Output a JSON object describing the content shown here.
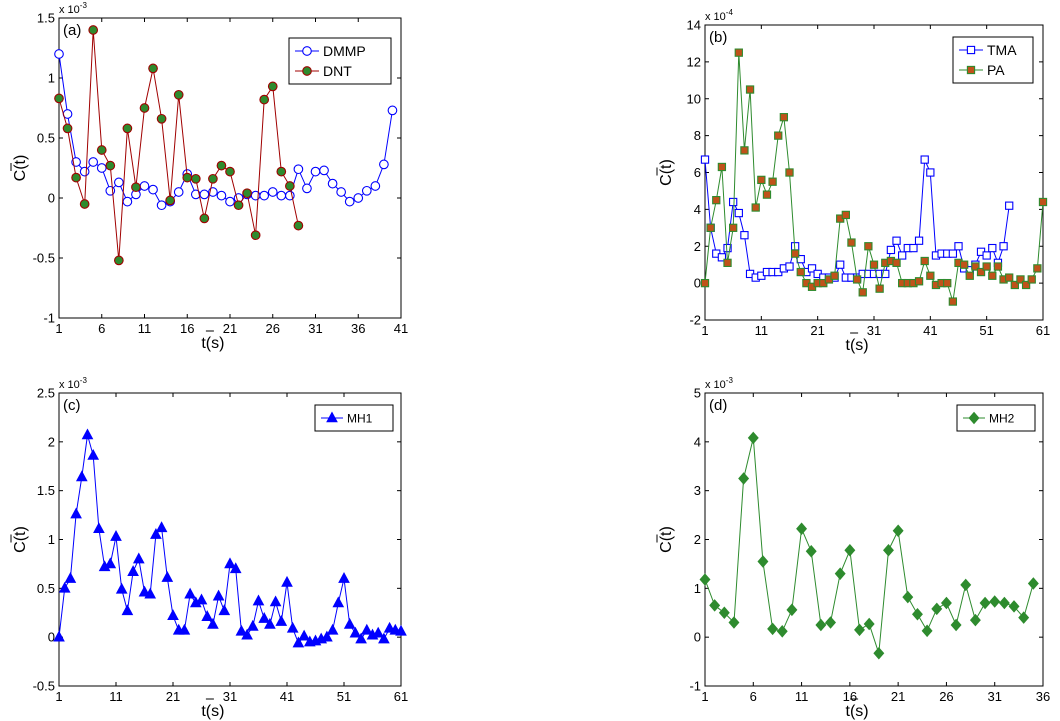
{
  "chart_data": [
    {
      "type": "line",
      "panel_label": "(a)",
      "xlabel": "t(s)",
      "ylabel": "C(t)",
      "exponent_label": "x 10",
      "exponent_power": "-3",
      "xlim": [
        1,
        41
      ],
      "ylim": [
        -1,
        1.5
      ],
      "xticks": [
        1,
        6,
        11,
        16,
        21,
        26,
        31,
        36,
        41
      ],
      "yticks": [
        -1,
        -0.5,
        0,
        0.5,
        1,
        1.5
      ],
      "series": [
        {
          "name": "DMMP",
          "color": "#0000ff",
          "fill": "#ffffff",
          "marker": "circle",
          "x": [
            1,
            2,
            3,
            4,
            5,
            6,
            7,
            8,
            9,
            10,
            11,
            12,
            13,
            14,
            15,
            16,
            17,
            18,
            19,
            20,
            21,
            22,
            23,
            24,
            25,
            26,
            27,
            28,
            29,
            30,
            31,
            32,
            33,
            34,
            35,
            36,
            37,
            38,
            39,
            40
          ],
          "y": [
            1.2,
            0.7,
            0.3,
            0.22,
            0.3,
            0.25,
            0.06,
            0.13,
            -0.03,
            0.03,
            0.1,
            0.07,
            -0.06,
            -0.03,
            0.05,
            0.2,
            0.03,
            0.03,
            0.05,
            0.02,
            -0.03,
            0.0,
            0.03,
            0.02,
            0.02,
            0.05,
            0.02,
            0.02,
            0.24,
            0.08,
            0.22,
            0.23,
            0.12,
            0.05,
            -0.03,
            0.0,
            0.06,
            0.1,
            0.28,
            0.73
          ]
        },
        {
          "name": "DNT",
          "color": "#a00000",
          "fill": "#2e8b2e",
          "marker": "circle",
          "x": [
            1,
            2,
            3,
            4,
            5,
            6,
            7,
            8,
            9,
            10,
            11,
            12,
            13,
            14,
            15,
            16,
            17,
            18,
            19,
            20,
            21,
            22,
            23,
            24,
            25,
            26,
            27,
            28,
            29
          ],
          "y": [
            0.83,
            0.58,
            0.17,
            -0.05,
            1.4,
            0.4,
            0.27,
            -0.52,
            0.58,
            0.09,
            0.75,
            1.08,
            0.66,
            -0.02,
            0.86,
            0.17,
            0.16,
            -0.17,
            0.16,
            0.27,
            0.22,
            -0.06,
            0.04,
            -0.31,
            0.82,
            0.93,
            0.22,
            0.1,
            -0.23
          ]
        }
      ]
    },
    {
      "type": "line",
      "panel_label": "(b)",
      "xlabel": "t(s)",
      "ylabel": "C(t)",
      "exponent_label": "x 10",
      "exponent_power": "-4",
      "xlim": [
        1,
        61
      ],
      "ylim": [
        -2,
        14
      ],
      "xticks": [
        1,
        11,
        21,
        31,
        41,
        51,
        61
      ],
      "yticks": [
        -2,
        0,
        2,
        4,
        6,
        8,
        10,
        12,
        14
      ],
      "series": [
        {
          "name": "TMA",
          "color": "#0000ff",
          "fill": "#ffffff",
          "marker": "square",
          "x": [
            1,
            2,
            3,
            4,
            5,
            6,
            7,
            8,
            9,
            10,
            11,
            12,
            13,
            14,
            15,
            16,
            17,
            18,
            19,
            20,
            21,
            22,
            23,
            24,
            25,
            26,
            27,
            28,
            29,
            30,
            31,
            32,
            33,
            34,
            35,
            36,
            37,
            38,
            39,
            40,
            41,
            42,
            43,
            44,
            45,
            46,
            47,
            48,
            49,
            50,
            51,
            52,
            53,
            54,
            55,
            56
          ],
          "y": [
            6.7,
            3.0,
            1.6,
            1.4,
            1.9,
            4.4,
            3.8,
            2.6,
            0.5,
            0.3,
            0.4,
            0.6,
            0.6,
            0.6,
            0.8,
            0.9,
            2.0,
            1.3,
            0.6,
            0.8,
            0.5,
            0.3,
            0.3,
            0.3,
            1.0,
            0.3,
            0.3,
            0.3,
            0.5,
            0.5,
            0.5,
            0.5,
            0.5,
            1.8,
            2.3,
            1.5,
            1.9,
            1.9,
            2.3,
            6.7,
            6.0,
            1.5,
            1.6,
            1.6,
            1.6,
            2.0,
            0.8,
            0.7,
            1.0,
            1.7,
            1.5,
            1.9,
            1.1,
            2.0,
            4.2,
            null
          ]
        },
        {
          "name": "PA",
          "color": "#2e8b2e",
          "fill": "#c0521a",
          "marker": "square",
          "x": [
            1,
            2,
            3,
            4,
            5,
            6,
            7,
            8,
            9,
            10,
            11,
            12,
            13,
            14,
            15,
            16,
            17,
            18,
            19,
            20,
            21,
            22,
            23,
            24,
            25,
            26,
            27,
            28,
            29,
            30,
            31,
            32,
            33,
            34,
            35,
            36,
            37,
            38,
            39,
            40,
            41,
            42,
            43,
            44,
            45,
            46,
            47,
            48,
            49,
            50,
            51,
            52,
            53,
            54,
            55,
            56,
            57,
            58,
            59,
            60,
            61
          ],
          "y": [
            0.0,
            3.0,
            4.5,
            6.3,
            1.1,
            3.0,
            12.5,
            7.2,
            10.5,
            4.1,
            5.6,
            4.8,
            5.5,
            8.0,
            9.0,
            6.0,
            1.6,
            0.6,
            0.0,
            -0.2,
            0.0,
            0.0,
            0.2,
            0.4,
            3.5,
            3.7,
            2.2,
            0.2,
            -0.5,
            2.0,
            1.0,
            -0.3,
            1.1,
            1.2,
            1.1,
            0.0,
            0.0,
            0.0,
            0.1,
            1.2,
            0.4,
            -0.1,
            0.0,
            0.0,
            -1.0,
            1.1,
            1.0,
            0.4,
            0.9,
            0.6,
            0.9,
            0.4,
            0.9,
            0.2,
            0.3,
            -0.1,
            0.2,
            -0.1,
            0.2,
            0.8,
            4.4
          ]
        }
      ]
    },
    {
      "type": "line",
      "panel_label": "(c)",
      "xlabel": "t(s)",
      "ylabel": "C(t)",
      "exponent_label": "x 10",
      "exponent_power": "-3",
      "xlim": [
        1,
        61
      ],
      "ylim": [
        -0.5,
        2.5
      ],
      "xticks": [
        1,
        11,
        21,
        31,
        41,
        51,
        61
      ],
      "yticks": [
        -0.5,
        0,
        0.5,
        1,
        1.5,
        2,
        2.5
      ],
      "series": [
        {
          "name": "MH1",
          "color": "#0000ff",
          "fill": "#0000ff",
          "marker": "triangle",
          "x": [
            1,
            2,
            3,
            4,
            5,
            6,
            7,
            8,
            9,
            10,
            11,
            12,
            13,
            14,
            15,
            16,
            17,
            18,
            19,
            20,
            21,
            22,
            23,
            24,
            25,
            26,
            27,
            28,
            29,
            30,
            31,
            32,
            33,
            34,
            35,
            36,
            37,
            38,
            39,
            40,
            41,
            42,
            43,
            44,
            45,
            46,
            47,
            48,
            49,
            50,
            51,
            52,
            53,
            54,
            55,
            56,
            57,
            58,
            59,
            60,
            61
          ],
          "y": [
            0.0,
            0.5,
            0.6,
            1.26,
            1.64,
            2.07,
            1.86,
            1.11,
            0.72,
            0.75,
            1.03,
            0.49,
            0.27,
            0.67,
            0.8,
            0.46,
            0.44,
            1.05,
            1.12,
            0.61,
            0.22,
            0.07,
            0.07,
            0.44,
            0.35,
            0.38,
            0.21,
            0.13,
            0.42,
            0.27,
            0.75,
            0.7,
            0.06,
            0.02,
            0.11,
            0.37,
            0.19,
            0.13,
            0.36,
            0.16,
            0.56,
            0.09,
            -0.06,
            0.01,
            -0.05,
            -0.04,
            -0.02,
            0.0,
            0.07,
            0.35,
            0.6,
            0.13,
            0.04,
            -0.02,
            0.07,
            0.02,
            0.04,
            -0.02,
            0.09,
            0.07,
            0.06
          ]
        }
      ]
    },
    {
      "type": "line",
      "panel_label": "(d)",
      "xlabel": "t(s)",
      "ylabel": "C(t)",
      "exponent_label": "x 10",
      "exponent_power": "-3",
      "xlim": [
        1,
        36
      ],
      "ylim": [
        -1,
        5
      ],
      "xticks": [
        1,
        6,
        11,
        16,
        21,
        26,
        31,
        36
      ],
      "yticks": [
        -1,
        0,
        1,
        2,
        3,
        4,
        5
      ],
      "series": [
        {
          "name": "MH2",
          "color": "#2e8b2e",
          "fill": "#2e8b2e",
          "marker": "diamond",
          "x": [
            1,
            2,
            3,
            4,
            5,
            6,
            7,
            8,
            9,
            10,
            11,
            12,
            13,
            14,
            15,
            16,
            17,
            18,
            19,
            20,
            21,
            22,
            23,
            24,
            25,
            26,
            27,
            28,
            29,
            30,
            31,
            32,
            33,
            34,
            35
          ],
          "y": [
            1.18,
            0.65,
            0.5,
            0.3,
            3.25,
            4.08,
            1.55,
            0.17,
            0.12,
            0.56,
            2.22,
            1.76,
            0.25,
            0.3,
            1.3,
            1.78,
            0.15,
            0.27,
            -0.33,
            1.78,
            2.18,
            0.82,
            0.47,
            0.13,
            0.58,
            0.7,
            0.25,
            1.07,
            0.35,
            0.7,
            0.73,
            0.7,
            0.63,
            0.4,
            1.1
          ]
        }
      ]
    }
  ]
}
